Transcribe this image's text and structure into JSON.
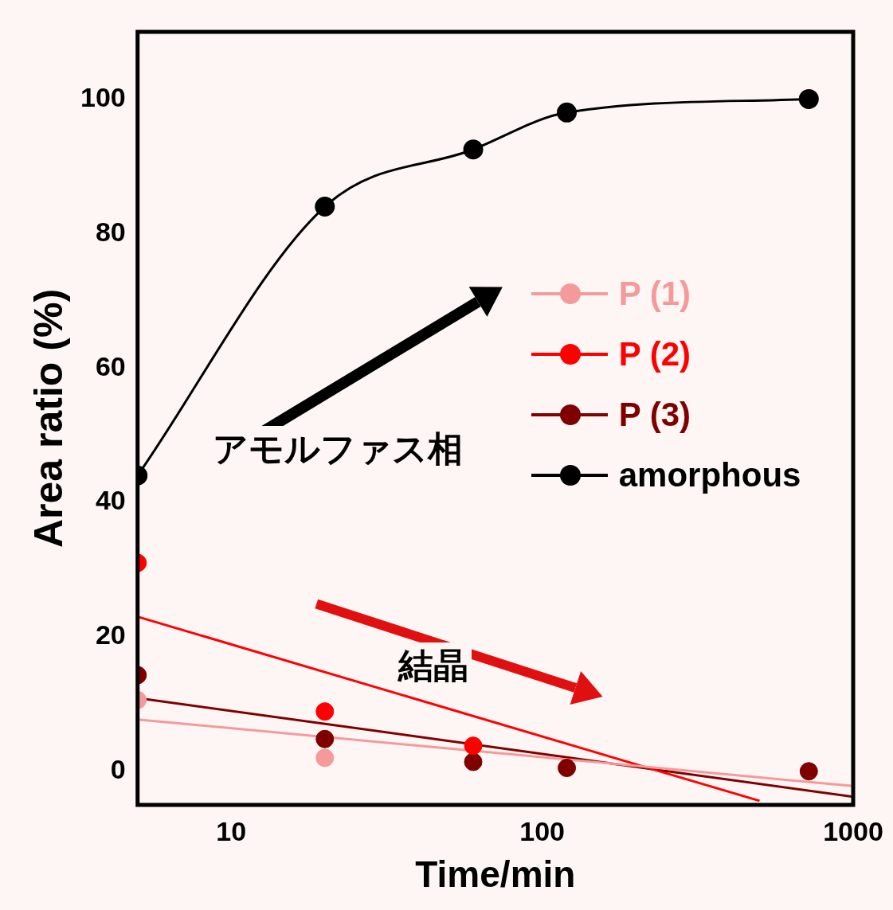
{
  "chart_data": {
    "type": "line",
    "xlabel": "Time/min",
    "ylabel": "Area ratio (%)",
    "log": "x",
    "xlim": [
      5,
      1000
    ],
    "xticks": [
      10,
      100,
      1000
    ],
    "ylim": [
      -5,
      110
    ],
    "yticks": [
      0,
      20,
      40,
      60,
      80,
      100
    ],
    "grid": false,
    "legend": "right",
    "marker": "circle",
    "x": [
      5,
      20,
      60,
      120,
      720
    ],
    "series": [
      {
        "name": "P (1)",
        "color": "#f59a9a",
        "type": "scatter",
        "values": [
          10.6,
          2.0,
          null,
          null,
          null
        ]
      },
      {
        "name": "P (2)",
        "color": "#ff0000",
        "type": "scatter",
        "values": [
          31,
          8.9,
          3.8,
          null,
          null
        ]
      },
      {
        "name": "P (3)",
        "color": "#800000",
        "type": "scatter",
        "values": [
          14.3,
          4.8,
          1.4,
          0.5,
          0
        ]
      },
      {
        "name": "amorphous",
        "color": "#000000",
        "type": "line",
        "values": [
          44,
          84,
          92.5,
          98,
          100
        ]
      },
      {
        "color": "#f59a9a",
        "type": "line",
        "marker": "none",
        "x": [
          5,
          1000
        ],
        "values": [
          7.7,
          -2.2
        ]
      },
      {
        "color": "#ff0000",
        "type": "line",
        "marker": "none",
        "x": [
          5,
          500
        ],
        "values": [
          23,
          -4.4
        ]
      },
      {
        "color": "#800000",
        "type": "line",
        "marker": "none",
        "x": [
          5,
          1000
        ],
        "values": [
          10.9,
          -3.8
        ]
      }
    ],
    "annotations": [
      "アモルファス相",
      "結晶"
    ]
  }
}
